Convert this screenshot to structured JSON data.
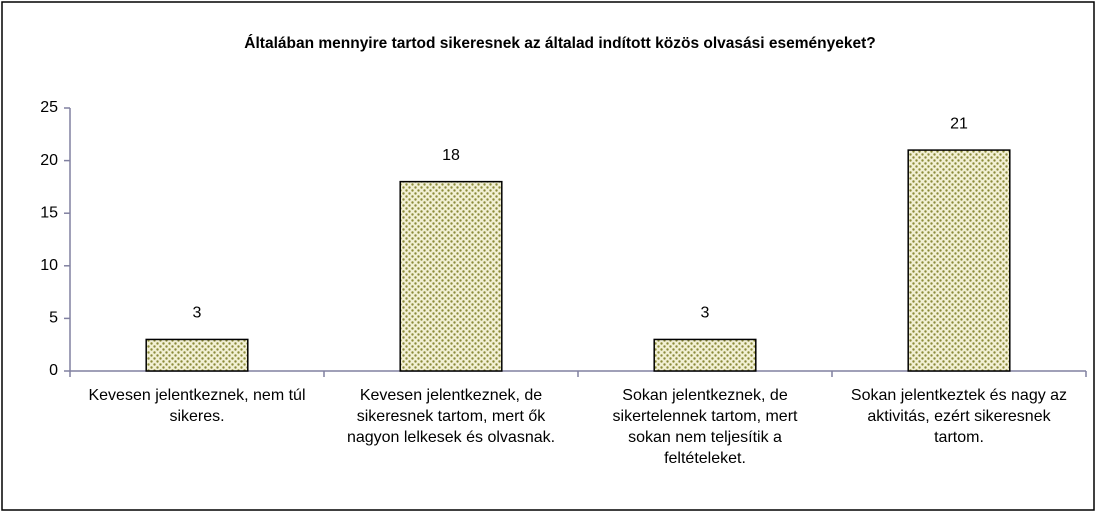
{
  "chart_data": {
    "type": "bar",
    "title": "Általában mennyire tartod sikeresnek az általad indított közös olvasási eseményeket?",
    "categories": [
      "Kevesen jelentkeznek, nem túl sikeres.",
      "Kevesen jelentkeznek, de sikeresnek tartom, mert ők nagyon lelkesek és olvasnak.",
      "Sokan jelentkeznek, de sikertelennek tartom, mert sokan nem teljesítik a feltételeket.",
      "Sokan jelentkeztek és nagy az aktivitás, ezért sikeresnek tartom."
    ],
    "values": [
      3,
      18,
      3,
      21
    ],
    "color": "#8b8b3a",
    "ylim": [
      0,
      25
    ],
    "yticks": [
      0,
      5,
      10,
      15,
      20,
      25
    ],
    "grid": false
  }
}
